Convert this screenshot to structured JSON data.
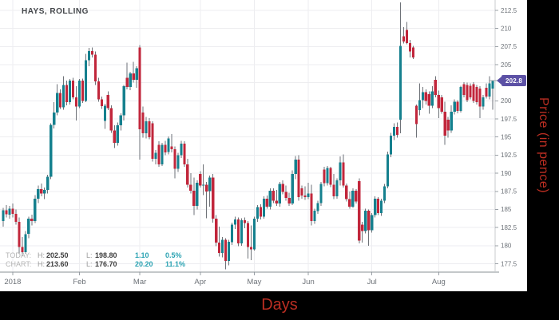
{
  "title": "HAYS, ROLLING",
  "axis": {
    "x_title": "Days",
    "y_title": "Price (in pence)"
  },
  "badge": {
    "value": "202.8"
  },
  "legend": {
    "rows": [
      {
        "label": "TODAY:",
        "high_key": "H:",
        "high": "202.50",
        "low_key": "L:",
        "low": "198.80",
        "change": "1.10",
        "percent": "0.5%"
      },
      {
        "label": "CHART:",
        "high_key": "H:",
        "high": "213.60",
        "low_key": "L:",
        "low": "176.70",
        "change": "20.20",
        "percent": "11.1%"
      }
    ]
  },
  "colors": {
    "up": "#15808e",
    "down": "#c1263b",
    "wick": "#6e7278",
    "grid": "#ededf0",
    "axis_text": "#6d7278",
    "tick": "#9aa0a6",
    "axis_line": "#8a9096",
    "axis_line_light": "#c8cbce",
    "badge": "#5c51a5",
    "axis_title_red": "#bb2e22",
    "legend_teal": "#2aa2b2",
    "background": "#ffffff",
    "frame": "#000000"
  },
  "chart_data": {
    "type": "candlestick",
    "title": "HAYS, ROLLING",
    "xlabel": "Days",
    "ylabel": "Price (in pence)",
    "grid": true,
    "ylim": [
      176.2,
      214.0
    ],
    "y_ticks": [
      212.5,
      210,
      207.5,
      205,
      200,
      197.5,
      195,
      192.5,
      190,
      187.5,
      185,
      182.5,
      180,
      177.5
    ],
    "x_tick_labels": [
      "2018",
      "Feb",
      "Mar",
      "Apr",
      "May",
      "Jun",
      "Jul",
      "Aug"
    ],
    "x_tick_indices": [
      3,
      24,
      43,
      62,
      79,
      96,
      116,
      137
    ],
    "last_price": 202.8,
    "today_high": 202.5,
    "today_low": 198.8,
    "chart_high": 213.6,
    "chart_low": 176.7,
    "candles": [
      [
        183.4,
        185.2,
        182.6,
        184.9
      ],
      [
        184.9,
        185.6,
        183.9,
        184.3
      ],
      [
        184.3,
        185.5,
        183.7,
        185.1
      ],
      [
        185.1,
        185.8,
        183.9,
        184.4
      ],
      [
        184.4,
        185.0,
        182.9,
        183.3
      ],
      [
        183.3,
        183.9,
        178.9,
        179.8
      ],
      [
        179.8,
        181.2,
        178.6,
        179.1
      ],
      [
        179.1,
        182.0,
        178.9,
        181.6
      ],
      [
        181.6,
        184.0,
        181.0,
        183.7
      ],
      [
        183.7,
        184.3,
        182.8,
        183.4
      ],
      [
        183.4,
        187.0,
        183.1,
        186.5
      ],
      [
        186.5,
        188.3,
        185.9,
        187.8
      ],
      [
        187.8,
        188.6,
        186.8,
        187.2
      ],
      [
        187.2,
        188.0,
        186.4,
        187.7
      ],
      [
        187.7,
        189.8,
        187.2,
        189.5
      ],
      [
        189.5,
        196.9,
        189.2,
        196.7
      ],
      [
        196.7,
        199.8,
        196.2,
        198.4
      ],
      [
        198.4,
        202.3,
        198.0,
        201.1
      ],
      [
        201.1,
        201.6,
        198.9,
        199.1
      ],
      [
        199.1,
        203.4,
        198.8,
        202.2
      ],
      [
        202.2,
        202.8,
        199.4,
        199.8
      ],
      [
        199.8,
        203.0,
        199.5,
        202.8
      ],
      [
        202.8,
        203.2,
        200.2,
        200.5
      ],
      [
        200.5,
        202.0,
        197.3,
        199.2
      ],
      [
        199.2,
        203.0,
        199.0,
        202.8
      ],
      [
        202.8,
        203.1,
        199.7,
        200.0
      ],
      [
        200.0,
        206.5,
        199.8,
        205.6
      ],
      [
        205.6,
        207.3,
        204.8,
        206.9
      ],
      [
        206.9,
        207.4,
        206.0,
        206.4
      ],
      [
        206.4,
        206.8,
        202.2,
        202.7
      ],
      [
        202.7,
        203.2,
        199.9,
        200.2
      ],
      [
        200.2,
        200.6,
        198.9,
        199.3
      ],
      [
        197.2,
        199.6,
        196.1,
        199.3
      ],
      [
        200.8,
        201.3,
        198.7,
        199.0
      ],
      [
        199.0,
        199.4,
        195.6,
        195.9
      ],
      [
        195.9,
        196.6,
        193.5,
        194.2
      ],
      [
        194.2,
        197.0,
        193.8,
        196.6
      ],
      [
        196.6,
        198.3,
        195.9,
        198.0
      ],
      [
        198.0,
        202.2,
        197.3,
        202.0
      ],
      [
        203.2,
        205.3,
        201.6,
        201.9
      ],
      [
        201.9,
        204.0,
        201.5,
        203.8
      ],
      [
        203.8,
        205.4,
        202.5,
        202.9
      ],
      [
        202.9,
        204.8,
        201.8,
        204.5
      ],
      [
        207.4,
        207.7,
        191.9,
        196.1
      ],
      [
        198.4,
        199.2,
        194.9,
        195.5
      ],
      [
        195.5,
        197.8,
        194.8,
        197.2
      ],
      [
        197.2,
        197.6,
        194.7,
        195.0
      ],
      [
        196.9,
        197.2,
        191.6,
        192.0
      ],
      [
        192.0,
        193.2,
        191.2,
        192.8
      ],
      [
        193.9,
        194.4,
        190.9,
        191.2
      ],
      [
        191.2,
        194.2,
        191.0,
        193.9
      ],
      [
        193.9,
        194.5,
        192.5,
        192.9
      ],
      [
        192.9,
        195.1,
        192.6,
        194.8
      ],
      [
        193.7,
        195.4,
        192.9,
        193.3
      ],
      [
        193.3,
        193.7,
        189.3,
        190.6
      ],
      [
        190.6,
        192.8,
        190.2,
        192.5
      ],
      [
        192.5,
        194.5,
        192.1,
        194.1
      ],
      [
        194.1,
        194.4,
        190.9,
        191.2
      ],
      [
        191.2,
        192.0,
        188.0,
        188.4
      ],
      [
        188.4,
        190.0,
        187.2,
        187.6
      ],
      [
        187.6,
        189.4,
        184.2,
        185.5
      ],
      [
        185.5,
        189.0,
        185.0,
        188.7
      ],
      [
        189.9,
        190.3,
        188.0,
        188.3
      ],
      [
        188.3,
        191.2,
        187.0,
        188.4
      ],
      [
        188.4,
        188.8,
        183.8,
        187.5
      ],
      [
        187.5,
        189.7,
        185.4,
        189.4
      ],
      [
        189.4,
        189.9,
        183.2,
        183.7
      ],
      [
        183.7,
        184.2,
        179.9,
        180.4
      ],
      [
        180.4,
        182.6,
        178.5,
        179.0
      ],
      [
        179.0,
        181.2,
        178.4,
        180.8
      ],
      [
        180.8,
        181.0,
        176.7,
        177.9
      ],
      [
        177.9,
        180.8,
        177.3,
        180.5
      ],
      [
        180.5,
        183.2,
        180.1,
        182.9
      ],
      [
        182.9,
        184.0,
        182.3,
        183.6
      ],
      [
        183.6,
        183.9,
        179.9,
        180.3
      ],
      [
        180.3,
        183.8,
        180.0,
        183.5
      ],
      [
        183.5,
        183.9,
        182.4,
        183.1
      ],
      [
        183.1,
        183.4,
        178.2,
        179.8
      ],
      [
        179.8,
        182.8,
        178.0,
        179.5
      ],
      [
        179.5,
        184.0,
        179.3,
        183.7
      ],
      [
        183.7,
        185.6,
        183.3,
        185.3
      ],
      [
        185.3,
        185.7,
        183.6,
        184.0
      ],
      [
        184.0,
        186.8,
        183.7,
        186.5
      ],
      [
        186.5,
        186.9,
        185.1,
        185.4
      ],
      [
        185.4,
        187.9,
        185.0,
        187.6
      ],
      [
        187.6,
        187.9,
        185.9,
        186.2
      ],
      [
        186.2,
        187.7,
        185.5,
        185.8
      ],
      [
        185.8,
        188.8,
        185.4,
        188.5
      ],
      [
        188.5,
        189.0,
        187.1,
        187.4
      ],
      [
        187.4,
        188.3,
        186.2,
        186.6
      ],
      [
        186.6,
        187.3,
        185.5,
        185.8
      ],
      [
        185.8,
        190.4,
        185.6,
        189.9
      ],
      [
        189.9,
        192.4,
        189.2,
        191.9
      ],
      [
        191.9,
        192.5,
        186.2,
        186.7
      ],
      [
        187.9,
        188.3,
        186.5,
        186.9
      ],
      [
        186.9,
        188.2,
        186.3,
        186.7
      ],
      [
        186.7,
        188.7,
        186.4,
        187.2
      ],
      [
        187.2,
        188.4,
        182.8,
        183.4
      ],
      [
        183.4,
        185.1,
        183.0,
        184.8
      ],
      [
        184.8,
        186.2,
        184.4,
        185.9
      ],
      [
        185.9,
        188.8,
        185.5,
        188.5
      ],
      [
        190.5,
        190.9,
        188.2,
        188.6
      ],
      [
        188.6,
        191.0,
        188.3,
        190.7
      ],
      [
        190.7,
        190.9,
        188.1,
        188.4
      ],
      [
        188.4,
        189.9,
        186.4,
        186.8
      ],
      [
        186.8,
        189.3,
        186.5,
        189.0
      ],
      [
        189.0,
        192.3,
        188.3,
        191.5
      ],
      [
        191.5,
        192.6,
        188.0,
        188.3
      ],
      [
        188.3,
        188.6,
        186.1,
        186.4
      ],
      [
        186.4,
        187.5,
        185.1,
        185.4
      ],
      [
        185.4,
        187.9,
        185.2,
        187.6
      ],
      [
        187.6,
        187.8,
        185.8,
        186.1
      ],
      [
        188.9,
        189.3,
        180.3,
        180.7
      ],
      [
        182.9,
        183.3,
        180.4,
        182.0
      ],
      [
        182.0,
        185.1,
        181.7,
        184.8
      ],
      [
        184.8,
        185.0,
        180.0,
        182.1
      ],
      [
        182.1,
        184.5,
        181.8,
        184.2
      ],
      [
        184.2,
        186.8,
        183.9,
        186.5
      ],
      [
        186.5,
        186.7,
        184.2,
        184.5
      ],
      [
        184.5,
        186.5,
        184.1,
        186.2
      ],
      [
        186.2,
        188.5,
        185.9,
        188.2
      ],
      [
        188.2,
        193.0,
        187.9,
        192.6
      ],
      [
        192.6,
        195.6,
        192.2,
        195.2
      ],
      [
        195.2,
        196.9,
        194.6,
        196.4
      ],
      [
        196.4,
        197.0,
        194.9,
        195.3
      ],
      [
        197.4,
        213.6,
        195.5,
        207.6
      ],
      [
        208.9,
        210.2,
        207.9,
        208.2
      ],
      [
        209.8,
        210.9,
        207.8,
        208.0
      ],
      [
        208.0,
        208.4,
        206.0,
        206.8
      ],
      [
        207.4,
        207.6,
        205.8,
        206.0
      ],
      [
        199.3,
        199.5,
        194.9,
        196.8
      ],
      [
        198.7,
        202.4,
        198.0,
        200.1
      ],
      [
        200.1,
        201.9,
        199.0,
        201.2
      ],
      [
        201.2,
        201.6,
        199.5,
        200.0
      ],
      [
        200.9,
        201.3,
        198.2,
        199.3
      ],
      [
        199.3,
        202.0,
        199.0,
        201.3
      ],
      [
        202.9,
        203.4,
        200.5,
        200.8
      ],
      [
        200.8,
        201.4,
        197.6,
        199.0
      ],
      [
        200.5,
        200.8,
        198.2,
        198.5
      ],
      [
        198.5,
        199.9,
        193.9,
        195.2
      ],
      [
        197.4,
        197.8,
        194.9,
        195.9
      ],
      [
        195.9,
        199.4,
        195.6,
        198.5
      ],
      [
        198.5,
        200.2,
        198.1,
        199.9
      ],
      [
        199.9,
        200.1,
        198.3,
        198.6
      ],
      [
        198.6,
        202.1,
        198.4,
        201.9
      ],
      [
        202.3,
        202.6,
        200.5,
        200.8
      ],
      [
        202.2,
        202.5,
        199.8,
        200.1
      ],
      [
        202.1,
        202.4,
        200.2,
        200.5
      ],
      [
        202.3,
        202.6,
        199.7,
        200.0
      ],
      [
        201.9,
        202.2,
        199.5,
        199.8
      ],
      [
        201.7,
        202.0,
        197.6,
        199.2
      ],
      [
        199.2,
        200.8,
        198.8,
        200.5
      ],
      [
        201.8,
        202.4,
        200.3,
        200.6
      ],
      [
        200.6,
        203.4,
        200.2,
        202.4
      ],
      [
        201.7,
        202.5,
        198.8,
        202.8
      ]
    ]
  }
}
